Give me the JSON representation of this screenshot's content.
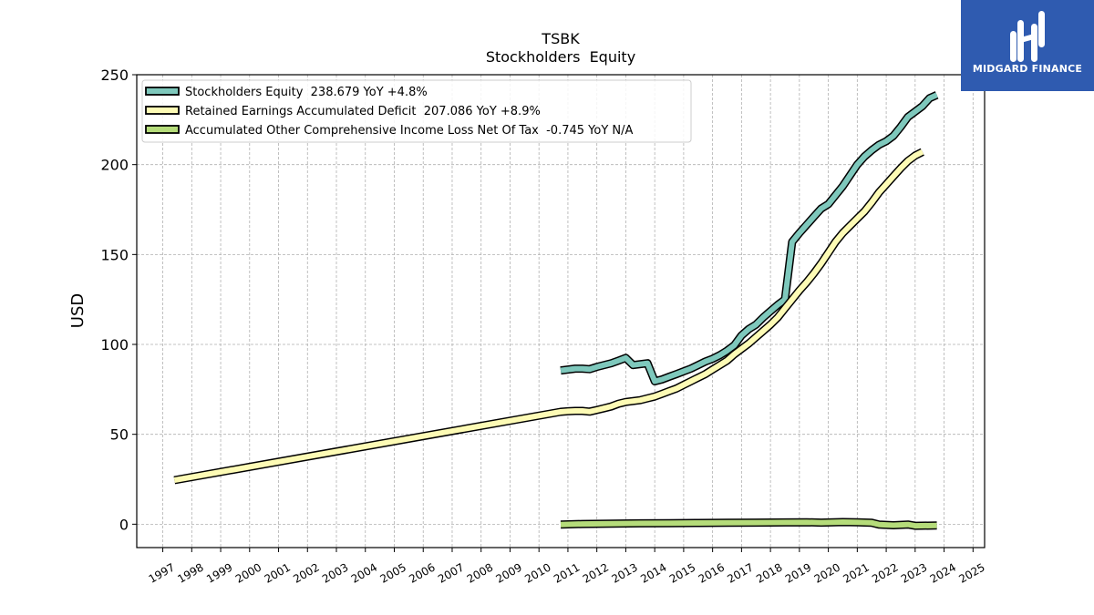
{
  "logo": {
    "text": "MIDGARD FINANCE",
    "background": "#2f5bb0"
  },
  "chart_data": {
    "type": "line",
    "title": "TSBK",
    "subtitle": "Stockholders  Equity",
    "ylabel": "USD",
    "xlabel": "",
    "ylim": [
      -13,
      250
    ],
    "xlim": [
      1996.1,
      2025.4
    ],
    "yticks": [
      0,
      50,
      100,
      150,
      200,
      250
    ],
    "xticks": [
      "1997",
      "1998",
      "1999",
      "2000",
      "2001",
      "2002",
      "2003",
      "2004",
      "2005",
      "2006",
      "2007",
      "2008",
      "2009",
      "2010",
      "2011",
      "2012",
      "2013",
      "2014",
      "2015",
      "2016",
      "2017",
      "2018",
      "2019",
      "2020",
      "2021",
      "2022",
      "2023",
      "2024",
      "2025"
    ],
    "grid": true,
    "legend_position": "top-left",
    "series": [
      {
        "name": "Stockholders Equity  238.679 YoY +4.8%",
        "color": "#7ec8bc",
        "points": [
          [
            2010.75,
            85.5
          ],
          [
            2011.0,
            86.0
          ],
          [
            2011.25,
            86.5
          ],
          [
            2011.5,
            86.5
          ],
          [
            2011.75,
            86.2
          ],
          [
            2012.0,
            87.5
          ],
          [
            2012.25,
            88.5
          ],
          [
            2012.5,
            89.5
          ],
          [
            2012.75,
            91.0
          ],
          [
            2013.0,
            92.5
          ],
          [
            2013.25,
            88.5
          ],
          [
            2013.5,
            89.0
          ],
          [
            2013.75,
            89.5
          ],
          [
            2014.0,
            79.5
          ],
          [
            2014.25,
            80.5
          ],
          [
            2014.5,
            82.0
          ],
          [
            2014.75,
            83.5
          ],
          [
            2015.0,
            85.0
          ],
          [
            2015.25,
            86.5
          ],
          [
            2015.5,
            88.5
          ],
          [
            2015.75,
            90.5
          ],
          [
            2016.0,
            92.0
          ],
          [
            2016.25,
            94.0
          ],
          [
            2016.5,
            96.5
          ],
          [
            2016.75,
            99.5
          ],
          [
            2017.0,
            105.0
          ],
          [
            2017.25,
            108.5
          ],
          [
            2017.5,
            111.0
          ],
          [
            2017.75,
            115.0
          ],
          [
            2018.0,
            118.5
          ],
          [
            2018.25,
            122.0
          ],
          [
            2018.5,
            125.0
          ],
          [
            2018.75,
            157.0
          ],
          [
            2019.0,
            162.0
          ],
          [
            2019.25,
            166.5
          ],
          [
            2019.5,
            171.0
          ],
          [
            2019.75,
            175.5
          ],
          [
            2020.0,
            178.0
          ],
          [
            2020.25,
            183.0
          ],
          [
            2020.5,
            188.0
          ],
          [
            2020.75,
            194.0
          ],
          [
            2021.0,
            200.0
          ],
          [
            2021.25,
            204.5
          ],
          [
            2021.5,
            208.0
          ],
          [
            2021.75,
            211.0
          ],
          [
            2022.0,
            213.0
          ],
          [
            2022.25,
            216.0
          ],
          [
            2022.5,
            221.0
          ],
          [
            2022.75,
            226.5
          ],
          [
            2023.0,
            229.5
          ],
          [
            2023.25,
            232.5
          ],
          [
            2023.5,
            237.0
          ],
          [
            2023.75,
            238.679
          ]
        ]
      },
      {
        "name": "Retained Earnings Accumulated Deficit  207.086 YoY +8.9%",
        "color": "#fdfbb5",
        "points": [
          [
            1997.4,
            24.5
          ],
          [
            2010.75,
            62.5
          ],
          [
            2011.0,
            62.8
          ],
          [
            2011.25,
            63.0
          ],
          [
            2011.5,
            63.0
          ],
          [
            2011.75,
            62.6
          ],
          [
            2012.0,
            63.5
          ],
          [
            2012.25,
            64.5
          ],
          [
            2012.5,
            65.5
          ],
          [
            2012.75,
            67.0
          ],
          [
            2013.0,
            68.0
          ],
          [
            2013.25,
            68.5
          ],
          [
            2013.5,
            69.0
          ],
          [
            2013.75,
            70.0
          ],
          [
            2014.0,
            71.0
          ],
          [
            2014.25,
            72.5
          ],
          [
            2014.5,
            74.0
          ],
          [
            2014.75,
            75.5
          ],
          [
            2015.0,
            77.5
          ],
          [
            2015.25,
            79.5
          ],
          [
            2015.5,
            81.5
          ],
          [
            2015.75,
            83.5
          ],
          [
            2016.0,
            86.0
          ],
          [
            2016.25,
            88.5
          ],
          [
            2016.5,
            91.0
          ],
          [
            2016.75,
            94.5
          ],
          [
            2017.0,
            97.5
          ],
          [
            2017.25,
            100.5
          ],
          [
            2017.5,
            104.0
          ],
          [
            2017.75,
            107.5
          ],
          [
            2018.0,
            111.0
          ],
          [
            2018.25,
            115.0
          ],
          [
            2018.5,
            120.0
          ],
          [
            2018.75,
            125.0
          ],
          [
            2019.0,
            130.0
          ],
          [
            2019.25,
            134.5
          ],
          [
            2019.5,
            139.5
          ],
          [
            2019.75,
            145.0
          ],
          [
            2020.0,
            151.0
          ],
          [
            2020.25,
            157.0
          ],
          [
            2020.5,
            162.0
          ],
          [
            2020.75,
            166.0
          ],
          [
            2021.0,
            170.0
          ],
          [
            2021.25,
            174.0
          ],
          [
            2021.5,
            179.0
          ],
          [
            2021.75,
            184.5
          ],
          [
            2022.0,
            189.0
          ],
          [
            2022.25,
            193.5
          ],
          [
            2022.5,
            198.0
          ],
          [
            2022.75,
            202.0
          ],
          [
            2023.0,
            205.0
          ],
          [
            2023.25,
            207.086
          ]
        ]
      },
      {
        "name": "Accumulated Other Comprehensive Income Loss Net Of Tax  -0.745 YoY N/A",
        "color": "#b5dc7a",
        "points": [
          [
            2010.75,
            -0.2
          ],
          [
            2011.5,
            0.1
          ],
          [
            2012.5,
            0.3
          ],
          [
            2013.5,
            0.5
          ],
          [
            2014.5,
            0.6
          ],
          [
            2015.5,
            0.7
          ],
          [
            2016.5,
            0.8
          ],
          [
            2017.5,
            0.9
          ],
          [
            2018.5,
            1.0
          ],
          [
            2019.25,
            1.1
          ],
          [
            2019.75,
            0.9
          ],
          [
            2020.5,
            1.2
          ],
          [
            2021.0,
            1.1
          ],
          [
            2021.5,
            0.8
          ],
          [
            2021.75,
            -0.2
          ],
          [
            2022.25,
            -0.6
          ],
          [
            2022.75,
            -0.2
          ],
          [
            2023.0,
            -0.9
          ],
          [
            2023.75,
            -0.745
          ]
        ]
      }
    ]
  }
}
